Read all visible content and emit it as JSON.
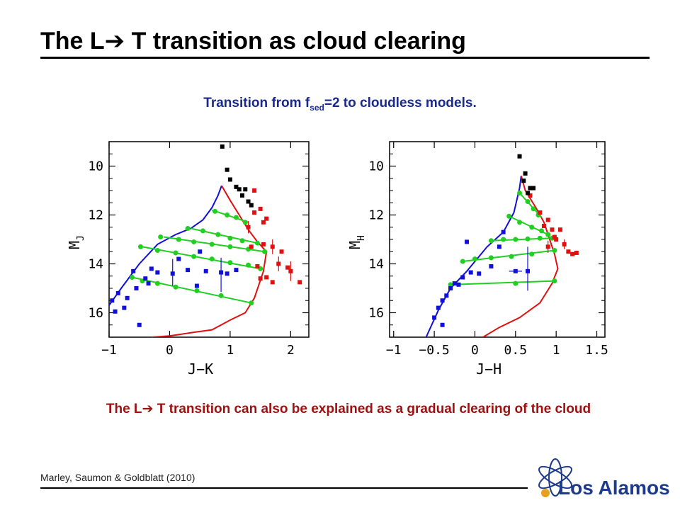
{
  "slide": {
    "title_pre": "The L",
    "title_arrow": "➔",
    "title_post": " T transition as cloud clearing",
    "subtitle_pre": "Transition from f",
    "subtitle_sub": "sed",
    "subtitle_post": "=2 to cloudless models.",
    "caption_pre": "The L",
    "caption_arrow": "➔",
    "caption_post": " T transition can also be explained as a gradual clearing of the cloud",
    "citation": "Marley, Saumon & Goldblatt (2010)",
    "logo_text": "Los Alamos",
    "colors": {
      "subtitle": "#1a2a8c",
      "caption": "#a01010",
      "logo_blue": "#1e3a8a",
      "logo_orange": "#e8a020"
    }
  },
  "chart_data": [
    {
      "type": "scatter",
      "xlabel": "J−K",
      "ylabel_main": "M",
      "ylabel_sub": "J",
      "xlim": [
        -1,
        2.3
      ],
      "ylim": [
        17,
        9
      ],
      "xticks": [
        -1,
        0,
        1,
        2
      ],
      "xtick_labels": [
        "−1",
        "0",
        "1",
        "2"
      ],
      "yticks": [
        10,
        12,
        14,
        16
      ],
      "ytick_labels": [
        "10",
        "12",
        "14",
        "16"
      ],
      "colors": {
        "blue": "#1010d8",
        "red": "#e01010",
        "green": "#20d020",
        "black": "#000000"
      },
      "blue_curve": [
        [
          -1.0,
          15.7
        ],
        [
          -0.8,
          15.0
        ],
        [
          -0.5,
          14.0
        ],
        [
          -0.2,
          13.2
        ],
        [
          0.1,
          12.8
        ],
        [
          0.35,
          12.55
        ],
        [
          0.55,
          12.2
        ],
        [
          0.7,
          11.7
        ],
        [
          0.8,
          11.2
        ],
        [
          0.86,
          10.8
        ]
      ],
      "red_curve": [
        [
          0.86,
          10.8
        ],
        [
          1.0,
          11.4
        ],
        [
          1.15,
          12.0
        ],
        [
          1.3,
          12.6
        ],
        [
          1.45,
          13.1
        ],
        [
          1.6,
          13.5
        ],
        [
          1.55,
          14.3
        ],
        [
          1.4,
          15.4
        ],
        [
          1.25,
          16.0
        ],
        [
          1.0,
          16.3
        ],
        [
          0.7,
          16.7
        ],
        [
          0.4,
          16.8
        ],
        [
          0.0,
          16.95
        ],
        [
          -0.3,
          17.0
        ]
      ],
      "green_lines": [
        {
          "x": [
            0.7,
            1.3
          ],
          "y": [
            11.8,
            12.3
          ]
        },
        {
          "x": [
            0.35,
            1.45
          ],
          "y": [
            12.55,
            13.15
          ]
        },
        {
          "x": [
            -0.1,
            1.57
          ],
          "y": [
            12.9,
            13.5
          ]
        },
        {
          "x": [
            -0.45,
            1.5
          ],
          "y": [
            13.3,
            14.2
          ]
        },
        {
          "x": [
            -0.62,
            1.35
          ],
          "y": [
            14.55,
            15.6
          ]
        }
      ],
      "green_points": [
        {
          "x": [
            0.75,
            0.95,
            1.1,
            1.25
          ],
          "y": [
            11.85,
            12.0,
            12.1,
            12.3
          ]
        },
        {
          "x": [
            0.3,
            0.55,
            0.8,
            1.0,
            1.2,
            1.45
          ],
          "y": [
            12.55,
            12.65,
            12.8,
            12.95,
            13.05,
            13.15
          ]
        },
        {
          "x": [
            -0.15,
            0.15,
            0.4,
            0.7,
            1.0,
            1.3,
            1.57
          ],
          "y": [
            12.9,
            13.0,
            13.1,
            13.2,
            13.3,
            13.4,
            13.5
          ]
        },
        {
          "x": [
            -0.48,
            -0.2,
            0.1,
            0.4,
            0.7,
            1.0,
            1.3,
            1.5
          ],
          "y": [
            13.3,
            13.45,
            13.55,
            13.7,
            13.8,
            13.95,
            14.05,
            14.2
          ]
        },
        {
          "x": [
            -0.62,
            -0.45,
            -0.2,
            0.1,
            0.45,
            0.85,
            1.35
          ],
          "y": [
            14.55,
            14.7,
            14.8,
            14.95,
            15.1,
            15.3,
            15.6
          ]
        }
      ],
      "blue_points": {
        "x": [
          -0.85,
          -0.7,
          -0.55,
          -0.75,
          -0.5,
          -0.4,
          -0.3,
          -0.2,
          0.05,
          0.3,
          0.6,
          0.85,
          0.95,
          1.1,
          0.5,
          -0.95,
          -0.9,
          -0.6,
          -0.35,
          0.15,
          0.45
        ],
        "y": [
          15.2,
          15.4,
          15.0,
          15.8,
          16.5,
          14.6,
          14.2,
          14.35,
          14.4,
          14.25,
          14.3,
          14.35,
          14.4,
          14.25,
          13.5,
          15.5,
          15.95,
          14.3,
          14.8,
          13.8,
          14.9
        ],
        "err_low": [
          0,
          0,
          0,
          0,
          0,
          0,
          0,
          0,
          0.5,
          0,
          0,
          0.8,
          0,
          0,
          0,
          0,
          0,
          0,
          0,
          0,
          0
        ],
        "err_high": [
          0,
          0,
          0,
          0,
          0,
          0,
          0,
          0,
          0.6,
          0,
          0,
          0.6,
          0,
          0,
          0,
          0,
          0,
          0,
          0,
          0,
          0
        ]
      },
      "red_points": {
        "x": [
          1.4,
          1.5,
          1.6,
          1.55,
          1.7,
          1.85,
          1.8,
          1.95,
          2.0,
          2.15,
          1.6,
          1.5,
          1.45,
          1.35,
          1.7,
          1.4,
          1.3,
          1.55
        ],
        "y": [
          11.0,
          11.75,
          12.15,
          13.2,
          13.3,
          13.5,
          14.0,
          14.15,
          14.3,
          14.75,
          14.55,
          14.6,
          14.1,
          13.3,
          14.75,
          11.9,
          12.5,
          12.3
        ],
        "err_low": [
          0,
          0,
          0,
          0,
          0.3,
          0,
          0.3,
          0,
          0.4,
          0,
          0,
          0,
          0,
          0,
          0,
          0,
          0.25,
          0
        ],
        "err_high": [
          0,
          0,
          0,
          0,
          0.3,
          0,
          0.3,
          0,
          0.4,
          0,
          0,
          0,
          0,
          0,
          0,
          0,
          0.25,
          0
        ]
      },
      "black_points": {
        "x": [
          0.87,
          0.95,
          1.0,
          1.15,
          1.25,
          1.3,
          1.35,
          1.1,
          1.2
        ],
        "y": [
          9.2,
          10.15,
          10.55,
          10.95,
          10.95,
          11.45,
          11.6,
          10.85,
          11.2
        ]
      }
    },
    {
      "type": "scatter",
      "xlabel": "J−H",
      "ylabel_main": "M",
      "ylabel_sub": "H",
      "xlim": [
        -1.05,
        1.6
      ],
      "ylim": [
        17,
        9
      ],
      "xticks": [
        -1,
        -0.5,
        0,
        0.5,
        1,
        1.5
      ],
      "xtick_labels": [
        "−1",
        "−0.5",
        "0",
        "0.5",
        "1",
        "1.5"
      ],
      "yticks": [
        10,
        12,
        14,
        16
      ],
      "ytick_labels": [
        "10",
        "12",
        "14",
        "16"
      ],
      "colors": {
        "blue": "#1010d8",
        "red": "#e01010",
        "green": "#20d020",
        "black": "#000000"
      },
      "blue_curve": [
        [
          -0.6,
          17.0
        ],
        [
          -0.45,
          15.9
        ],
        [
          -0.3,
          15.0
        ],
        [
          -0.1,
          14.3
        ],
        [
          0.15,
          13.3
        ],
        [
          0.35,
          12.7
        ],
        [
          0.48,
          11.9
        ],
        [
          0.55,
          10.9
        ],
        [
          0.57,
          10.4
        ]
      ],
      "red_curve": [
        [
          0.57,
          10.4
        ],
        [
          0.62,
          11.0
        ],
        [
          0.75,
          11.7
        ],
        [
          0.85,
          12.3
        ],
        [
          0.92,
          13.0
        ],
        [
          0.98,
          13.6
        ],
        [
          1.02,
          14.2
        ],
        [
          0.95,
          14.8
        ],
        [
          0.8,
          15.6
        ],
        [
          0.55,
          16.2
        ],
        [
          0.3,
          16.6
        ],
        [
          0.1,
          17.0
        ]
      ],
      "green_lines": [
        {
          "x": [
            0.55,
            0.82
          ],
          "y": [
            11.1,
            12.1
          ]
        },
        {
          "x": [
            0.42,
            0.9
          ],
          "y": [
            12.05,
            12.8
          ]
        },
        {
          "x": [
            0.2,
            0.95
          ],
          "y": [
            13.05,
            12.95
          ]
        },
        {
          "x": [
            -0.15,
            0.98
          ],
          "y": [
            13.9,
            13.45
          ]
        },
        {
          "x": [
            -0.3,
            0.98
          ],
          "y": [
            14.85,
            14.7
          ]
        }
      ],
      "green_points": [
        {
          "x": [
            0.55,
            0.65,
            0.72,
            0.78
          ],
          "y": [
            11.1,
            11.45,
            11.75,
            12.0
          ]
        },
        {
          "x": [
            0.42,
            0.55,
            0.7,
            0.82,
            0.9
          ],
          "y": [
            12.05,
            12.3,
            12.5,
            12.65,
            12.8
          ]
        },
        {
          "x": [
            0.2,
            0.35,
            0.5,
            0.65,
            0.8,
            0.95
          ],
          "y": [
            13.05,
            13.0,
            13.0,
            12.98,
            12.95,
            12.95
          ]
        },
        {
          "x": [
            -0.15,
            0.0,
            0.2,
            0.45,
            0.7,
            0.98
          ],
          "y": [
            13.9,
            13.8,
            13.75,
            13.7,
            13.6,
            13.45
          ]
        },
        {
          "x": [
            -0.3,
            0.5,
            0.98
          ],
          "y": [
            14.85,
            14.8,
            14.7
          ]
        }
      ],
      "blue_points": {
        "x": [
          -0.45,
          -0.4,
          -0.35,
          -0.5,
          -0.3,
          -0.25,
          -0.15,
          -0.05,
          0.05,
          0.2,
          0.3,
          0.5,
          0.65,
          -0.2,
          -0.4,
          -0.1,
          0.35
        ],
        "y": [
          15.8,
          15.5,
          15.3,
          16.2,
          15.0,
          14.8,
          14.55,
          14.35,
          14.4,
          14.1,
          13.3,
          14.3,
          14.3,
          14.85,
          16.5,
          13.1,
          12.7
        ],
        "err_low": [
          0,
          0,
          0,
          0,
          0,
          0,
          0,
          0,
          0,
          0,
          0,
          0,
          0.8,
          0,
          0,
          0,
          0
        ],
        "err_high": [
          0,
          0,
          0,
          0,
          0,
          0,
          0,
          0,
          0,
          0,
          0,
          0,
          1.0,
          0,
          0,
          0,
          0
        ],
        "hbar": [
          0,
          0,
          0,
          0,
          0,
          0,
          0,
          0,
          0,
          0,
          0,
          0.08,
          0,
          0,
          0,
          0,
          0
        ]
      },
      "red_points": {
        "x": [
          0.68,
          0.8,
          0.9,
          0.95,
          1.05,
          1.1,
          1.15,
          1.2,
          1.25,
          0.98,
          0.85,
          0.9,
          1.0
        ],
        "y": [
          11.2,
          11.9,
          12.2,
          12.6,
          12.6,
          13.2,
          13.5,
          13.6,
          13.55,
          12.9,
          12.45,
          13.3,
          13.0
        ],
        "err_low": [
          0,
          0,
          0,
          0,
          0,
          0.2,
          0,
          0,
          0,
          0,
          0,
          0.25,
          0
        ],
        "err_high": [
          0,
          0,
          0,
          0,
          0,
          0.2,
          0,
          0,
          0,
          0,
          0,
          0.25,
          0
        ]
      },
      "black_points": {
        "x": [
          0.55,
          0.62,
          0.6,
          0.68,
          0.72,
          0.65
        ],
        "y": [
          9.6,
          10.3,
          10.6,
          10.9,
          10.9,
          11.1
        ]
      }
    }
  ]
}
